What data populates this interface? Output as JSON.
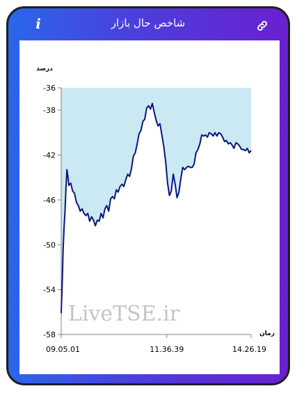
{
  "app": {
    "title": "شاخص حال بازار",
    "info_glyph": "i",
    "info_icon": "info-icon",
    "link_icon": "link-icon"
  },
  "colors": {
    "gradient_start": "#2a67ea",
    "gradient_end": "#6a1fd0",
    "line": "#0a1580",
    "area_fill": "#cbe9f2",
    "frame_border": "#1e1e1e"
  },
  "watermark": "LiveTSE.ir",
  "chart_data": {
    "type": "area",
    "ylabel": "درصد",
    "xlabel": "زمان",
    "ylim": [
      -58,
      -36
    ],
    "yticks": [
      "-36",
      "-38",
      "-42",
      "-46",
      "-50",
      "-54",
      "-58"
    ],
    "ytick_values": [
      -36,
      -38,
      -42,
      -46,
      -50,
      -54,
      -58
    ],
    "xticks": [
      "09.05.01",
      "11.36.39",
      "14.26.19"
    ],
    "x_range": [
      0,
      100
    ],
    "xtick_positions": [
      0,
      55.6,
      100
    ],
    "grid": false,
    "series": [
      {
        "x": [
          0,
          0.5,
          1,
          1.5,
          2,
          2.5,
          3,
          3.5,
          4,
          5,
          6,
          7,
          8,
          9,
          10,
          11,
          12,
          13,
          14,
          15,
          16,
          17,
          18,
          19,
          20,
          21,
          22,
          23,
          24,
          25,
          26,
          27,
          28,
          29,
          30,
          31,
          32,
          33,
          34,
          35,
          36,
          37,
          38,
          39,
          40,
          41,
          42,
          43,
          44,
          45,
          46,
          47,
          48,
          49,
          50,
          51,
          52,
          53,
          54,
          55,
          56,
          57,
          58,
          59,
          60,
          61,
          62,
          63,
          64,
          65,
          66,
          67,
          68,
          69,
          70,
          71,
          72,
          73,
          74,
          75,
          76,
          77,
          78,
          79,
          80,
          81,
          82,
          83,
          84,
          85,
          86,
          87,
          88,
          89,
          90,
          91,
          92,
          93,
          94,
          95,
          96,
          97,
          98,
          99,
          100
        ],
        "values": [
          -56.1,
          -53.5,
          -50.5,
          -48.5,
          -47,
          -45,
          -43.3,
          -43.9,
          -44.7,
          -44.5,
          -45.2,
          -45.4,
          -46.2,
          -46.5,
          -47,
          -46.8,
          -47.2,
          -47.4,
          -47.2,
          -47.9,
          -47.5,
          -47.8,
          -48.3,
          -47.8,
          -47.9,
          -47.2,
          -47.6,
          -46.8,
          -46.5,
          -47,
          -45.9,
          -45.7,
          -45.9,
          -45.1,
          -45.3,
          -44.8,
          -44.6,
          -44.8,
          -44.2,
          -43.7,
          -43.9,
          -43.2,
          -42.1,
          -41.8,
          -41,
          -40.1,
          -39.8,
          -39,
          -38.8,
          -37.8,
          -37.6,
          -37.9,
          -37.4,
          -38.2,
          -38.9,
          -39.4,
          -39.2,
          -40.2,
          -41.2,
          -42.6,
          -44.5,
          -45.6,
          -45.2,
          -43.7,
          -44.6,
          -45.8,
          -45.3,
          -44.1,
          -43.1,
          -43.3,
          -43.1,
          -43,
          -43.1,
          -43.1,
          -42.8,
          -41.8,
          -41.5,
          -41,
          -40.2,
          -40.3,
          -40.2,
          -40.4,
          -40,
          -40.1,
          -40.3,
          -40,
          -40.3,
          -40,
          -40.1,
          -40.4,
          -40.8,
          -40.7,
          -41,
          -40.9,
          -41.1,
          -41.4,
          -40.9,
          -41,
          -41.2,
          -41.5,
          -41.5,
          -41.6,
          -41.4,
          -41.8,
          -41.6
        ]
      }
    ]
  }
}
